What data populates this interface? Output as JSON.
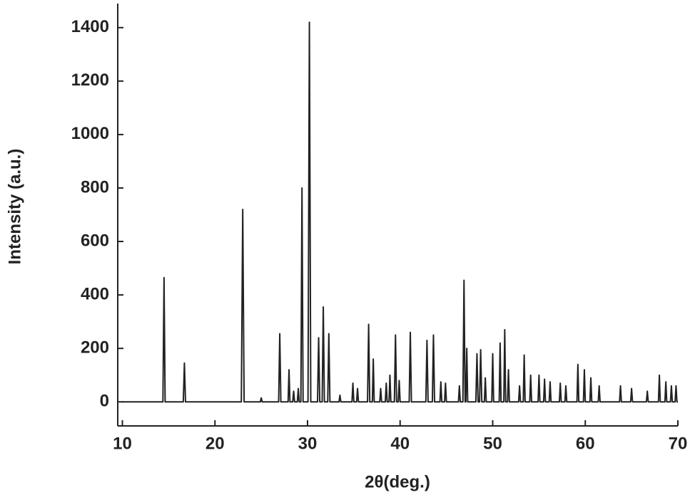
{
  "chart_data": {
    "type": "line",
    "xlabel": "2θ(deg.)",
    "ylabel": "Intensity (a.u.)",
    "xlim": [
      9.5,
      70
    ],
    "ylim": [
      -90,
      1490
    ],
    "xticks": [
      10,
      20,
      30,
      40,
      50,
      60,
      70
    ],
    "yticks": [
      0,
      200,
      400,
      600,
      800,
      1000,
      1200,
      1400
    ],
    "x": [
      10,
      14.38,
      14.5,
      14.62,
      16.58,
      16.7,
      16.82,
      22.85,
      23.0,
      23.15,
      24.9,
      25.0,
      25.1,
      26.88,
      27.0,
      27.12,
      27.9,
      28.0,
      28.1,
      28.4,
      28.5,
      28.6,
      28.9,
      29.0,
      29.1,
      29.28,
      29.4,
      29.52,
      30.05,
      30.2,
      30.35,
      31.08,
      31.2,
      31.32,
      31.58,
      31.7,
      31.82,
      32.18,
      32.3,
      32.42,
      33.4,
      33.5,
      33.6,
      34.8,
      34.9,
      35.0,
      35.3,
      35.4,
      35.5,
      36.48,
      36.6,
      36.72,
      37.0,
      37.1,
      37.2,
      37.8,
      37.9,
      38.0,
      38.4,
      38.5,
      38.6,
      38.8,
      38.9,
      39.0,
      39.38,
      39.5,
      39.62,
      39.8,
      39.9,
      40.0,
      40.98,
      41.1,
      41.22,
      42.78,
      42.9,
      43.02,
      43.48,
      43.6,
      43.72,
      44.3,
      44.4,
      44.5,
      44.8,
      44.9,
      45.0,
      46.3,
      46.4,
      46.5,
      46.78,
      46.9,
      47.02,
      47.1,
      47.2,
      47.3,
      48.18,
      48.3,
      48.42,
      48.58,
      48.7,
      48.82,
      49.1,
      49.2,
      49.3,
      49.9,
      50.0,
      50.1,
      50.7,
      50.8,
      50.9,
      51.2,
      51.3,
      51.4,
      51.6,
      51.7,
      51.8,
      52.8,
      52.9,
      53.0,
      53.3,
      53.4,
      53.5,
      54.0,
      54.1,
      54.2,
      54.9,
      55.0,
      55.1,
      55.5,
      55.6,
      55.7,
      56.1,
      56.2,
      56.3,
      57.2,
      57.3,
      57.4,
      57.8,
      57.9,
      58.0,
      59.1,
      59.2,
      59.3,
      59.8,
      59.9,
      60.0,
      60.5,
      60.6,
      60.7,
      61.4,
      61.5,
      61.6,
      63.7,
      63.8,
      63.9,
      64.9,
      65.0,
      65.1,
      66.6,
      66.7,
      66.8,
      67.9,
      68.0,
      68.1,
      68.6,
      68.7,
      68.8,
      69.2,
      69.3,
      69.4,
      69.7,
      69.8,
      69.9,
      70
    ],
    "series": [
      {
        "color": "#222222",
        "values": [
          0,
          0,
          465,
          0,
          0,
          145,
          0,
          0,
          720,
          0,
          0,
          15,
          0,
          0,
          255,
          0,
          0,
          120,
          0,
          0,
          40,
          0,
          0,
          50,
          0,
          0,
          800,
          0,
          0,
          1420,
          0,
          0,
          240,
          0,
          0,
          355,
          0,
          0,
          255,
          0,
          0,
          25,
          0,
          0,
          70,
          0,
          0,
          50,
          0,
          0,
          290,
          0,
          0,
          160,
          0,
          0,
          50,
          0,
          0,
          70,
          0,
          0,
          100,
          0,
          0,
          250,
          0,
          0,
          80,
          0,
          0,
          260,
          0,
          0,
          230,
          0,
          0,
          250,
          0,
          0,
          75,
          0,
          0,
          70,
          0,
          0,
          60,
          0,
          0,
          455,
          0,
          0,
          200,
          0,
          0,
          180,
          0,
          0,
          195,
          0,
          0,
          90,
          0,
          0,
          180,
          0,
          0,
          220,
          0,
          0,
          270,
          0,
          0,
          120,
          0,
          0,
          60,
          0,
          0,
          175,
          0,
          0,
          100,
          0,
          0,
          100,
          0,
          0,
          85,
          0,
          0,
          75,
          0,
          0,
          70,
          0,
          0,
          60,
          0,
          0,
          140,
          0,
          0,
          120,
          0,
          0,
          90,
          0,
          0,
          60,
          0,
          0,
          60,
          0,
          0,
          50,
          0,
          0,
          40,
          0,
          0,
          100,
          0,
          0,
          75,
          0,
          0,
          60,
          0,
          0,
          60,
          0,
          0
        ]
      }
    ]
  }
}
